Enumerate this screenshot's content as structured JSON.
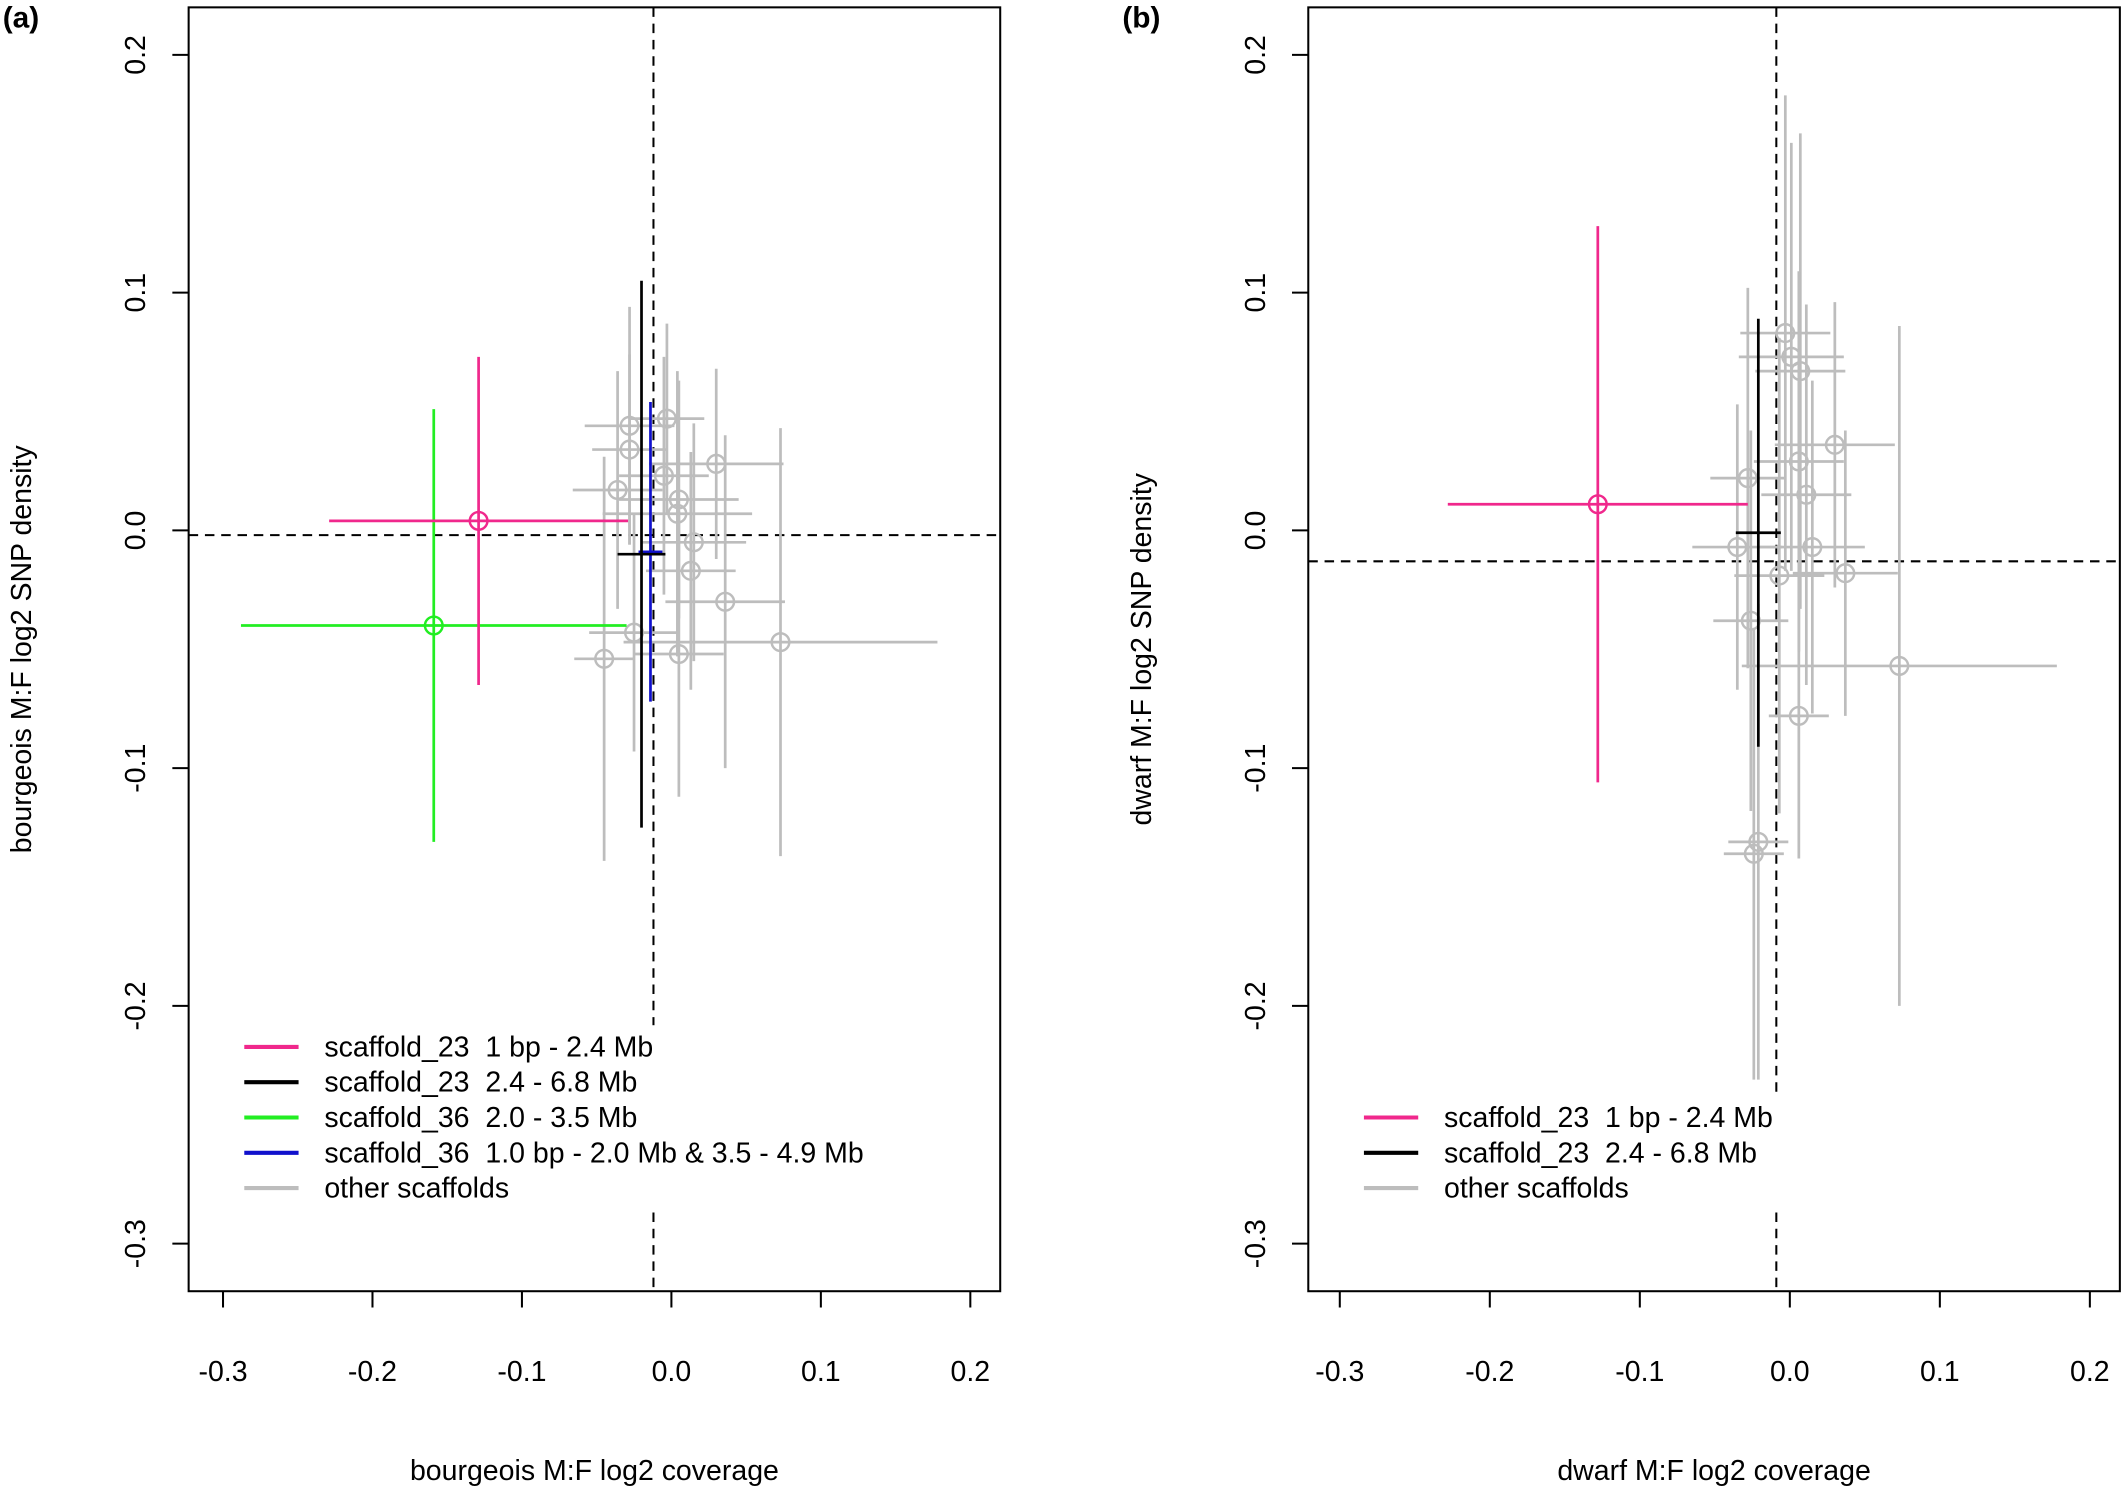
{
  "chart_data": [
    {
      "type": "scatter",
      "panel_label": "(a)",
      "xlabel": "bourgeois M:F log2 coverage",
      "ylabel": "bourgeois M:F log2 SNP density",
      "xlim": [
        -0.323,
        0.22
      ],
      "ylim": [
        -0.32,
        0.22
      ],
      "xticks": [
        -0.3,
        -0.2,
        -0.1,
        {
          "value": 0,
          "label": "0.0"
        },
        0.1,
        0.2
      ],
      "yticks": [
        -0.3,
        -0.2,
        -0.1,
        {
          "value": 0,
          "label": "0.0"
        },
        0.1,
        0.2
      ],
      "vline": -0.012,
      "hline": -0.002,
      "legend": "lower left",
      "series": [
        {
          "name": "scaffold_23  1 bp - 2.4 Mb",
          "color": "#f0288c",
          "marker": true,
          "x": [
            -0.129
          ],
          "y": [
            0.004
          ],
          "xerr": [
            0.1
          ],
          "yerr": [
            0.069
          ]
        },
        {
          "name": "scaffold_23  2.4 - 6.8 Mb",
          "color": "#000000",
          "marker": false,
          "x": [
            -0.02
          ],
          "y": [
            -0.01
          ],
          "xerr": [
            0.016
          ],
          "yerr": [
            0.115
          ]
        },
        {
          "name": "scaffold_36  2.0 - 3.5 Mb",
          "color": "#22ee22",
          "marker": true,
          "x": [
            -0.159
          ],
          "y": [
            -0.04
          ],
          "xerr": [
            0.129
          ],
          "yerr": [
            0.091
          ]
        },
        {
          "name": "scaffold_36  1.0 bp - 2.0 Mb & 3.5 - 4.9 Mb",
          "color": "#1010cc",
          "marker": false,
          "x": [
            -0.014
          ],
          "y": [
            -0.009
          ],
          "xerr": [
            0.008
          ],
          "yerr": [
            0.063
          ]
        },
        {
          "name": "other scaffolds",
          "color": "#bdbdbd",
          "marker": true,
          "x": [
            0.03,
            0.073,
            0.036,
            -0.036,
            -0.028,
            -0.003,
            -0.028,
            0.005,
            0.013,
            0.005,
            -0.025,
            -0.045,
            0.004,
            0.015,
            -0.005
          ],
          "y": [
            0.028,
            -0.047,
            -0.03,
            0.017,
            0.044,
            0.047,
            0.034,
            0.013,
            -0.017,
            -0.052,
            -0.043,
            -0.054,
            0.007,
            -0.005,
            0.023
          ],
          "xerr": [
            0.045,
            0.105,
            0.04,
            0.03,
            0.03,
            0.025,
            0.025,
            0.04,
            0.03,
            0.03,
            0.03,
            0.02,
            0.05,
            0.035,
            0.03
          ],
          "yerr": [
            0.04,
            0.09,
            0.07,
            0.05,
            0.05,
            0.04,
            0.04,
            0.05,
            0.05,
            0.06,
            0.05,
            0.085,
            0.06,
            0.05,
            0.05
          ]
        }
      ]
    },
    {
      "type": "scatter",
      "panel_label": "(b)",
      "xlabel": "dwarf M:F log2 coverage",
      "ylabel": "dwarf M:F log2 SNP density",
      "xlim": [
        -0.321,
        0.22
      ],
      "ylim": [
        -0.32,
        0.22
      ],
      "xticks": [
        -0.3,
        -0.2,
        -0.1,
        {
          "value": 0,
          "label": "0.0"
        },
        0.1,
        0.2
      ],
      "yticks": [
        -0.3,
        -0.2,
        -0.1,
        {
          "value": 0,
          "label": "0.0"
        },
        0.1,
        0.2
      ],
      "vline": -0.009,
      "hline": -0.013,
      "legend": "lower left",
      "series": [
        {
          "name": "scaffold_23  1 bp - 2.4 Mb",
          "color": "#f0288c",
          "marker": true,
          "x": [
            -0.128
          ],
          "y": [
            0.011
          ],
          "xerr": [
            0.1
          ],
          "yerr": [
            0.117
          ]
        },
        {
          "name": "scaffold_23  2.4 - 6.8 Mb",
          "color": "#000000",
          "marker": false,
          "x": [
            -0.021
          ],
          "y": [
            -0.001
          ],
          "xerr": [
            0.015
          ],
          "yerr": [
            0.09
          ]
        },
        {
          "name": "other scaffolds",
          "color": "#bdbdbd",
          "marker": true,
          "x": [
            0.073,
            0.03,
            0.037,
            0.006,
            -0.021,
            -0.024,
            -0.003,
            0.007,
            0.001,
            -0.028,
            0.006,
            0.011,
            -0.026,
            0.015,
            -0.007,
            -0.035
          ],
          "y": [
            -0.057,
            0.036,
            -0.018,
            -0.078,
            -0.131,
            -0.136,
            0.083,
            0.067,
            0.073,
            0.022,
            0.029,
            0.015,
            -0.038,
            -0.007,
            -0.019,
            -0.007
          ],
          "xerr": [
            0.105,
            0.04,
            0.035,
            0.02,
            0.02,
            0.02,
            0.03,
            0.03,
            0.035,
            0.025,
            0.03,
            0.03,
            0.025,
            0.035,
            0.03,
            0.03
          ],
          "yerr": [
            0.143,
            0.06,
            0.06,
            0.06,
            0.1,
            0.095,
            0.1,
            0.1,
            0.09,
            0.08,
            0.08,
            0.08,
            0.08,
            0.07,
            0.1,
            0.06
          ]
        }
      ]
    }
  ]
}
